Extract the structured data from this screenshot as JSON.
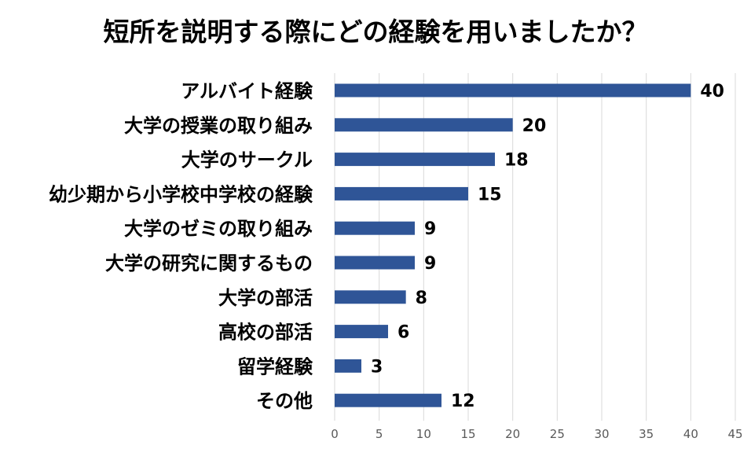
{
  "chart_data": {
    "type": "bar",
    "orientation": "horizontal",
    "title": "短所を説明する際にどの経験を用いましたか？",
    "categories": [
      "アルバイト経験",
      "大学の授業の取り組み",
      "大学のサークル",
      "幼少期から小学校中学校の経験",
      "大学のゼミの取り組み",
      "大学の研究に関するもの",
      "大学の部活",
      "高校の部活",
      "留学経験",
      "その他"
    ],
    "values": [
      40,
      20,
      18,
      15,
      9,
      9,
      8,
      6,
      3,
      12
    ],
    "xlim": [
      0,
      45
    ],
    "x_ticks": [
      0,
      5,
      10,
      15,
      20,
      25,
      30,
      35,
      40,
      45
    ],
    "xlabel": "",
    "ylabel": "",
    "grid": true,
    "legend": "none",
    "bar_color": "#2f5597",
    "data_labels": true
  }
}
